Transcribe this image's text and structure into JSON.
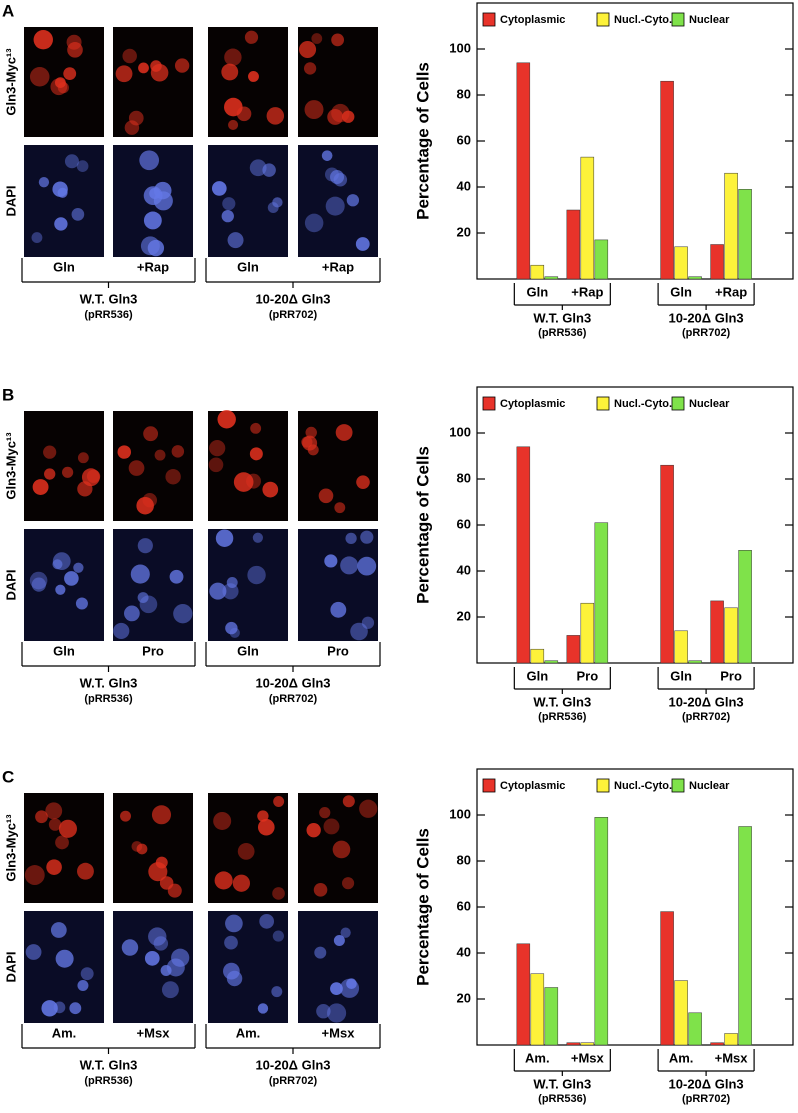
{
  "panels": [
    {
      "letter": "A",
      "row_labels": [
        "Gln3-Myc¹³",
        "DAPI"
      ],
      "conditions": [
        "Gln",
        "+Rap",
        "Gln",
        "+Rap"
      ],
      "groups": [
        {
          "label": "W.T. Gln3",
          "sublabel": "(pRR536)"
        },
        {
          "label": "10-20Δ Gln3",
          "sublabel": "(pRR702)"
        }
      ]
    },
    {
      "letter": "B",
      "row_labels": [
        "Gln3-Myc¹³",
        "DAPI"
      ],
      "conditions": [
        "Gln",
        "Pro",
        "Gln",
        "Pro"
      ],
      "groups": [
        {
          "label": "W.T. Gln3",
          "sublabel": "(pRR536)"
        },
        {
          "label": "10-20Δ Gln3",
          "sublabel": "(pRR702)"
        }
      ]
    },
    {
      "letter": "C",
      "row_labels": [
        "Gln3-Myc¹³",
        "DAPI"
      ],
      "conditions": [
        "Am.",
        "+Msx",
        "Am.",
        "+Msx"
      ],
      "groups": [
        {
          "label": "W.T. Gln3",
          "sublabel": "(pRR536)"
        },
        {
          "label": "10-20Δ Gln3",
          "sublabel": "(pRR702)"
        }
      ]
    }
  ],
  "chart_data": [
    {
      "type": "bar",
      "y_label": "Percentage of Cells",
      "categories": [
        "Gln",
        "+Rap",
        "Gln",
        "+Rap"
      ],
      "groups": [
        {
          "label": "W.T. Gln3",
          "sublabel": "(pRR536)"
        },
        {
          "label": "10-20Δ Gln3",
          "sublabel": "(pRR702)"
        }
      ],
      "series": [
        {
          "name": "Cytoplasmic",
          "color": "#e8332a",
          "values": [
            94,
            30,
            86,
            15
          ]
        },
        {
          "name": "Nucl.-Cyto.",
          "color": "#fdf23a",
          "values": [
            6,
            53,
            14,
            46
          ]
        },
        {
          "name": "Nuclear",
          "color": "#7fe24a",
          "values": [
            1,
            17,
            1,
            39
          ]
        }
      ],
      "ylim": [
        0,
        120
      ],
      "yticks": [
        20,
        40,
        60,
        80,
        100
      ],
      "legend": "top"
    },
    {
      "type": "bar",
      "y_label": "Percentage of Cells",
      "categories": [
        "Gln",
        "Pro",
        "Gln",
        "Pro"
      ],
      "groups": [
        {
          "label": "W.T. Gln3",
          "sublabel": "(pRR536)"
        },
        {
          "label": "10-20Δ Gln3",
          "sublabel": "(pRR702)"
        }
      ],
      "series": [
        {
          "name": "Cytoplasmic",
          "color": "#e8332a",
          "values": [
            94,
            12,
            86,
            27
          ]
        },
        {
          "name": "Nucl.-Cyto.",
          "color": "#fdf23a",
          "values": [
            6,
            26,
            14,
            24
          ]
        },
        {
          "name": "Nuclear",
          "color": "#7fe24a",
          "values": [
            1,
            61,
            1,
            49
          ]
        }
      ],
      "ylim": [
        0,
        120
      ],
      "yticks": [
        20,
        40,
        60,
        80,
        100
      ],
      "legend": "top"
    },
    {
      "type": "bar",
      "y_label": "Percentage of Cells",
      "categories": [
        "Am.",
        "+Msx",
        "Am.",
        "+Msx"
      ],
      "groups": [
        {
          "label": "W.T. Gln3",
          "sublabel": "(pRR536)"
        },
        {
          "label": "10-20Δ Gln3",
          "sublabel": "(pRR702)"
        }
      ],
      "series": [
        {
          "name": "Cytoplasmic",
          "color": "#e8332a",
          "values": [
            44,
            1,
            58,
            1
          ]
        },
        {
          "name": "Nucl.-Cyto.",
          "color": "#fdf23a",
          "values": [
            31,
            1,
            28,
            5
          ]
        },
        {
          "name": "Nuclear",
          "color": "#7fe24a",
          "values": [
            25,
            99,
            14,
            95
          ]
        }
      ],
      "ylim": [
        0,
        120
      ],
      "yticks": [
        20,
        40,
        60,
        80,
        100
      ],
      "legend": "top"
    }
  ]
}
